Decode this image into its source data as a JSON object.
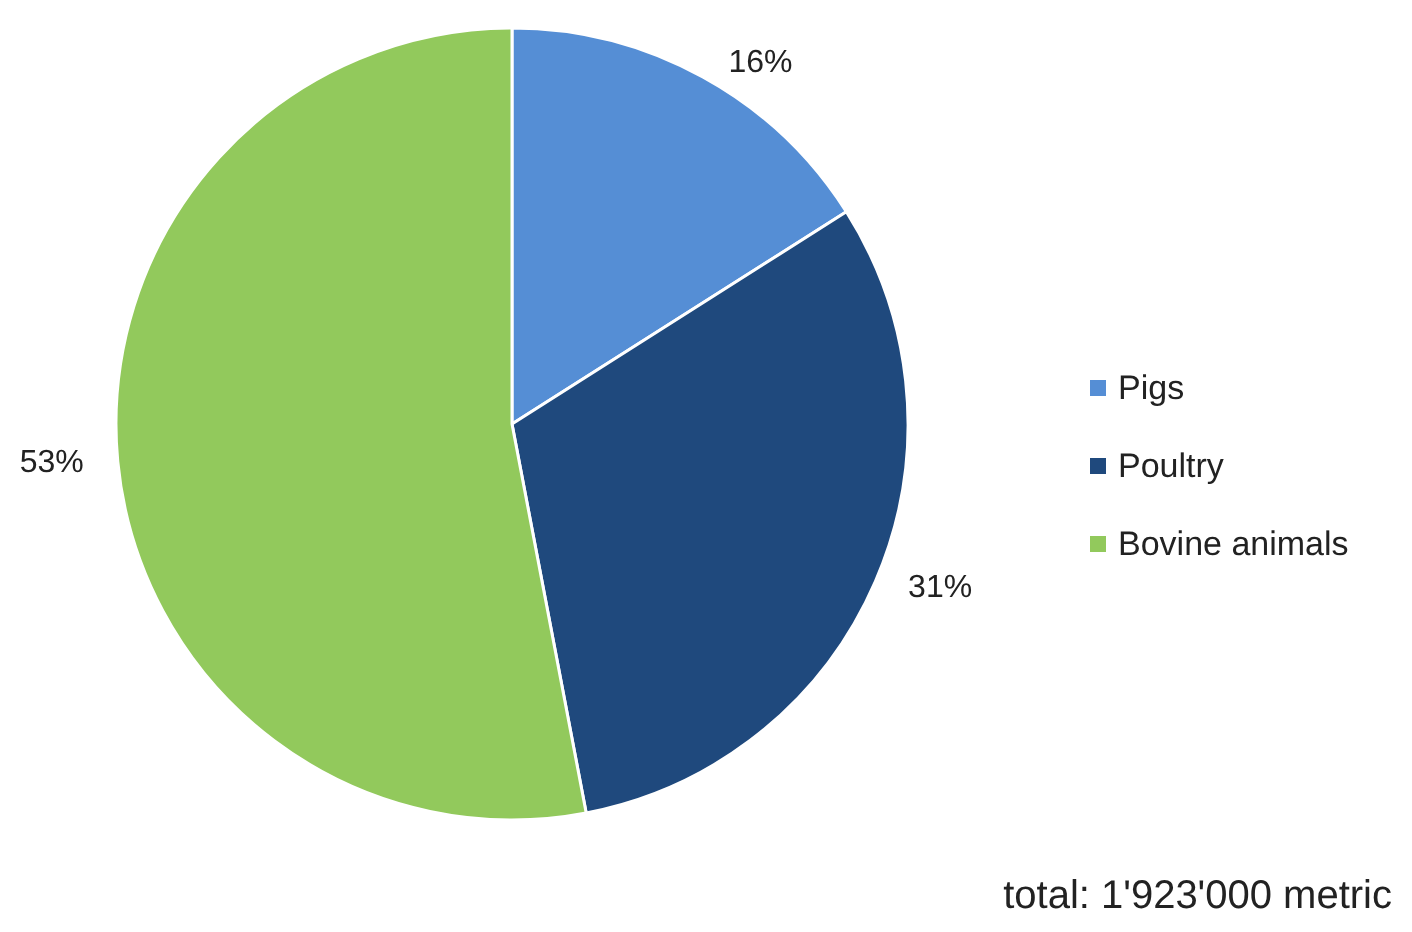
{
  "chart_data": {
    "type": "pie",
    "categories": [
      "Pigs",
      "Poultry",
      "Bovine animals"
    ],
    "values": [
      16,
      31,
      53
    ],
    "value_labels": [
      "16%",
      "31%",
      "53%"
    ],
    "colors": [
      "#558ed5",
      "#1f497d",
      "#92c95c"
    ],
    "legend": "right",
    "annotations": [
      "total: 1'923'000 metric"
    ]
  }
}
